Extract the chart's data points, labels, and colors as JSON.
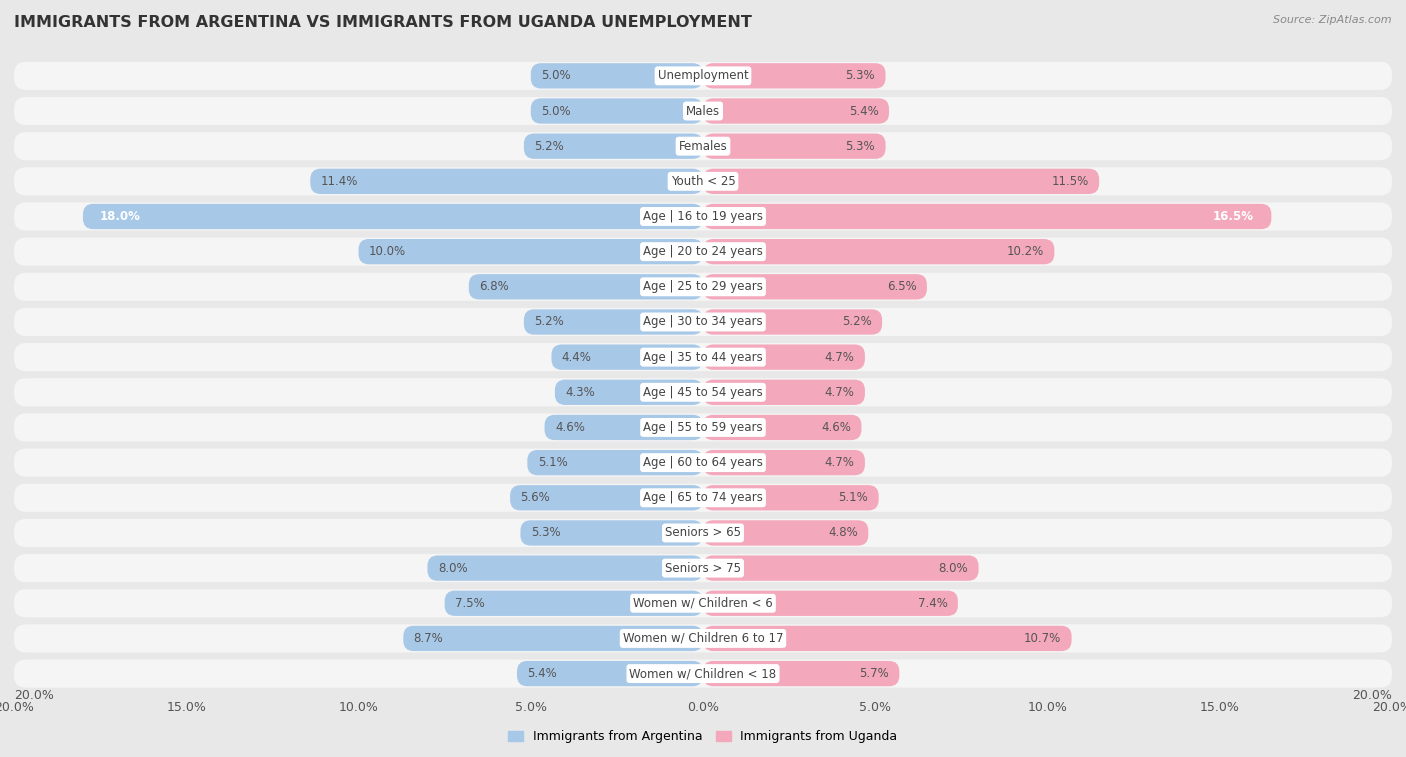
{
  "title": "IMMIGRANTS FROM ARGENTINA VS IMMIGRANTS FROM UGANDA UNEMPLOYMENT",
  "source": "Source: ZipAtlas.com",
  "categories": [
    "Unemployment",
    "Males",
    "Females",
    "Youth < 25",
    "Age | 16 to 19 years",
    "Age | 20 to 24 years",
    "Age | 25 to 29 years",
    "Age | 30 to 34 years",
    "Age | 35 to 44 years",
    "Age | 45 to 54 years",
    "Age | 55 to 59 years",
    "Age | 60 to 64 years",
    "Age | 65 to 74 years",
    "Seniors > 65",
    "Seniors > 75",
    "Women w/ Children < 6",
    "Women w/ Children 6 to 17",
    "Women w/ Children < 18"
  ],
  "argentina_values": [
    5.0,
    5.0,
    5.2,
    11.4,
    18.0,
    10.0,
    6.8,
    5.2,
    4.4,
    4.3,
    4.6,
    5.1,
    5.6,
    5.3,
    8.0,
    7.5,
    8.7,
    5.4
  ],
  "uganda_values": [
    5.3,
    5.4,
    5.3,
    11.5,
    16.5,
    10.2,
    6.5,
    5.2,
    4.7,
    4.7,
    4.6,
    4.7,
    5.1,
    4.8,
    8.0,
    7.4,
    10.7,
    5.7
  ],
  "argentina_color": "#a8c8e8",
  "uganda_color": "#f4a8bc",
  "background_color": "#e8e8e8",
  "bar_background": "#f5f5f5",
  "xlim": 20.0,
  "legend_argentina": "Immigrants from Argentina",
  "legend_uganda": "Immigrants from Uganda",
  "title_fontsize": 11.5,
  "label_fontsize": 8.5,
  "tick_fontsize": 9,
  "value_fontsize": 8.5
}
